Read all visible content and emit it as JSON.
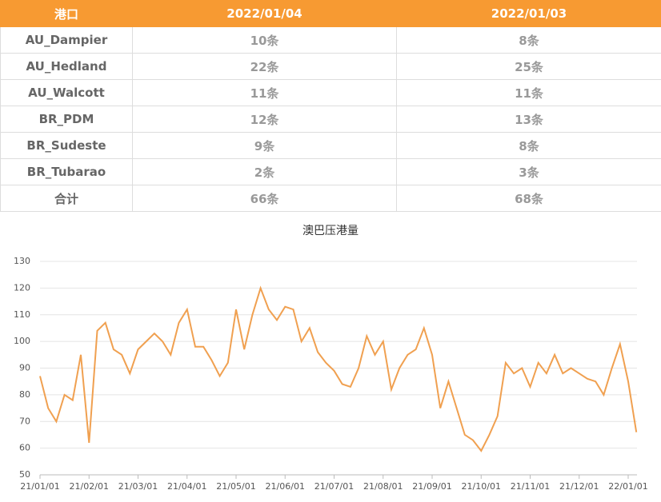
{
  "table": {
    "header": [
      "港口",
      "2022/01/04",
      "2022/01/03"
    ],
    "rows": [
      [
        "AU_Dampier",
        "10条",
        "8条"
      ],
      [
        "AU_Hedland",
        "22条",
        "25条"
      ],
      [
        "AU_Walcott",
        "11条",
        "11条"
      ],
      [
        "BR_PDM",
        "12条",
        "13条"
      ],
      [
        "BR_Sudeste",
        "9条",
        "8条"
      ],
      [
        "BR_Tubarao",
        "2条",
        "3条"
      ],
      [
        "合计",
        "66条",
        "68条"
      ]
    ]
  },
  "chart_data": {
    "type": "line",
    "title": "澳巴压港量",
    "color": "#f0a050",
    "categories": [
      "21/01/01",
      "21/01/06",
      "21/01/11",
      "21/01/16",
      "21/01/21",
      "21/01/26",
      "21/02/01",
      "21/02/06",
      "21/02/11",
      "21/02/16",
      "21/02/21",
      "21/02/26",
      "21/03/01",
      "21/03/06",
      "21/03/11",
      "21/03/16",
      "21/03/21",
      "21/03/26",
      "21/04/01",
      "21/04/06",
      "21/04/11",
      "21/04/16",
      "21/04/21",
      "21/04/26",
      "21/05/01",
      "21/05/06",
      "21/05/11",
      "21/05/16",
      "21/05/21",
      "21/05/26",
      "21/06/01",
      "21/06/06",
      "21/06/11",
      "21/06/16",
      "21/06/21",
      "21/06/26",
      "21/07/01",
      "21/07/06",
      "21/07/11",
      "21/07/16",
      "21/07/21",
      "21/07/26",
      "21/08/01",
      "21/08/06",
      "21/08/11",
      "21/08/16",
      "21/08/21",
      "21/08/26",
      "21/09/01",
      "21/09/06",
      "21/09/11",
      "21/09/16",
      "21/09/21",
      "21/09/26",
      "21/10/01",
      "21/10/06",
      "21/10/11",
      "21/10/16",
      "21/10/21",
      "21/10/26",
      "21/11/01",
      "21/11/06",
      "21/11/11",
      "21/11/16",
      "21/11/21",
      "21/11/26",
      "21/12/01",
      "21/12/06",
      "21/12/11",
      "21/12/16",
      "21/12/21",
      "21/12/26",
      "22/01/01",
      "22/01/04"
    ],
    "values": [
      87,
      75,
      70,
      80,
      78,
      95,
      62,
      104,
      107,
      97,
      95,
      88,
      97,
      100,
      103,
      100,
      95,
      107,
      112,
      98,
      98,
      93,
      87,
      92,
      112,
      97,
      110,
      120,
      112,
      108,
      113,
      112,
      100,
      105,
      96,
      92,
      89,
      84,
      83,
      90,
      102,
      95,
      100,
      82,
      90,
      95,
      97,
      105,
      95,
      75,
      85,
      75,
      65,
      63,
      59,
      65,
      72,
      92,
      88,
      90,
      83,
      92,
      88,
      95,
      88,
      90,
      88,
      86,
      85,
      80,
      90,
      99,
      85,
      66
    ],
    "ylim": [
      50,
      130
    ],
    "yticks": [
      50,
      60,
      70,
      80,
      90,
      100,
      110,
      120,
      130
    ],
    "xticks": [
      "21/01/01",
      "21/02/01",
      "21/03/01",
      "21/04/01",
      "21/05/01",
      "21/06/01",
      "21/07/01",
      "21/08/01",
      "21/09/01",
      "21/10/01",
      "21/11/01",
      "21/12/01",
      "22/01/01"
    ],
    "grid": true
  }
}
